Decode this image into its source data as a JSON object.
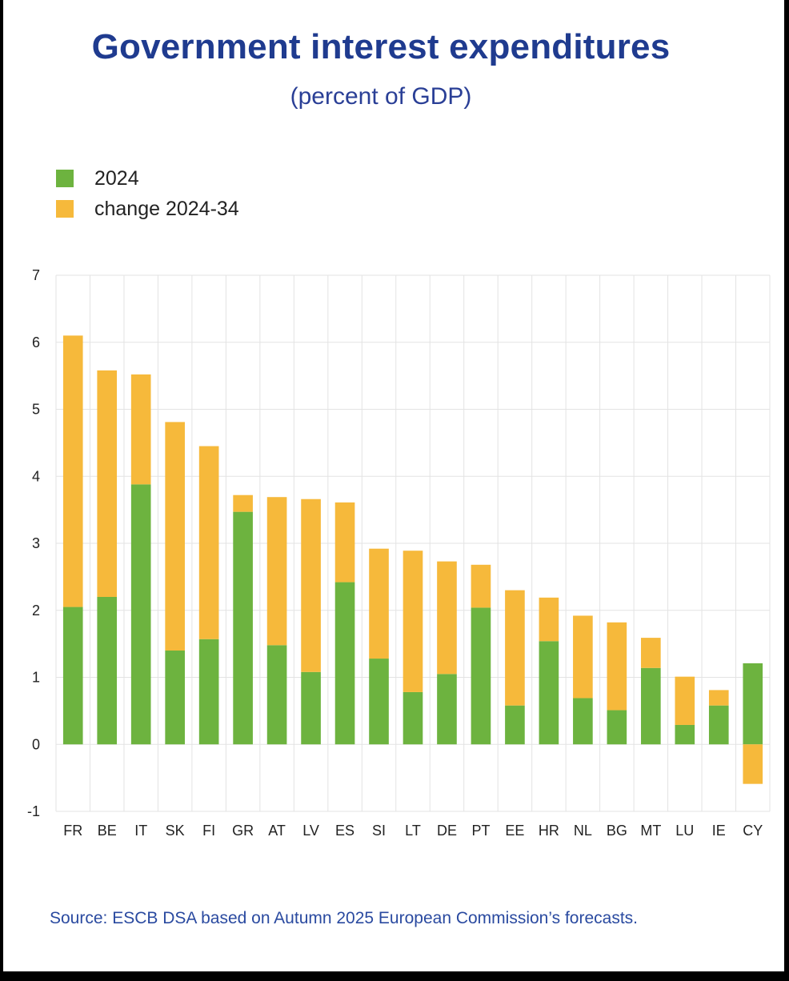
{
  "title": "Government interest expenditures",
  "subtitle": "(percent of GDP)",
  "source": "Source: ESCB DSA based on Autumn 2025 European Commission’s forecasts.",
  "colors": {
    "green": "#6db33f",
    "orange": "#f6b93b",
    "title": "#1f3b8f"
  },
  "chart_data": {
    "type": "bar",
    "stacked": true,
    "categories": [
      "FR",
      "BE",
      "IT",
      "SK",
      "FI",
      "GR",
      "AT",
      "LV",
      "ES",
      "SI",
      "LT",
      "DE",
      "PT",
      "EE",
      "HR",
      "NL",
      "BG",
      "MT",
      "LU",
      "IE",
      "CY"
    ],
    "series": [
      {
        "name": "2024",
        "color": "#6db33f",
        "values": [
          2.05,
          2.2,
          3.88,
          1.4,
          1.57,
          3.47,
          1.48,
          1.08,
          2.42,
          1.28,
          0.78,
          1.05,
          2.04,
          0.58,
          1.54,
          0.69,
          0.51,
          1.14,
          0.29,
          0.58,
          1.21
        ]
      },
      {
        "name": "change 2024-34",
        "color": "#f6b93b",
        "values": [
          4.05,
          3.38,
          1.64,
          3.41,
          2.88,
          0.25,
          2.21,
          2.58,
          1.19,
          1.64,
          2.11,
          1.68,
          0.64,
          1.72,
          0.65,
          1.23,
          1.31,
          0.45,
          0.72,
          0.23,
          -0.59
        ]
      }
    ],
    "yticks": [
      -1,
      0,
      1,
      2,
      3,
      4,
      5,
      6,
      7
    ],
    "ylim": [
      -1,
      7
    ],
    "grid": true,
    "legend": "top-left"
  }
}
